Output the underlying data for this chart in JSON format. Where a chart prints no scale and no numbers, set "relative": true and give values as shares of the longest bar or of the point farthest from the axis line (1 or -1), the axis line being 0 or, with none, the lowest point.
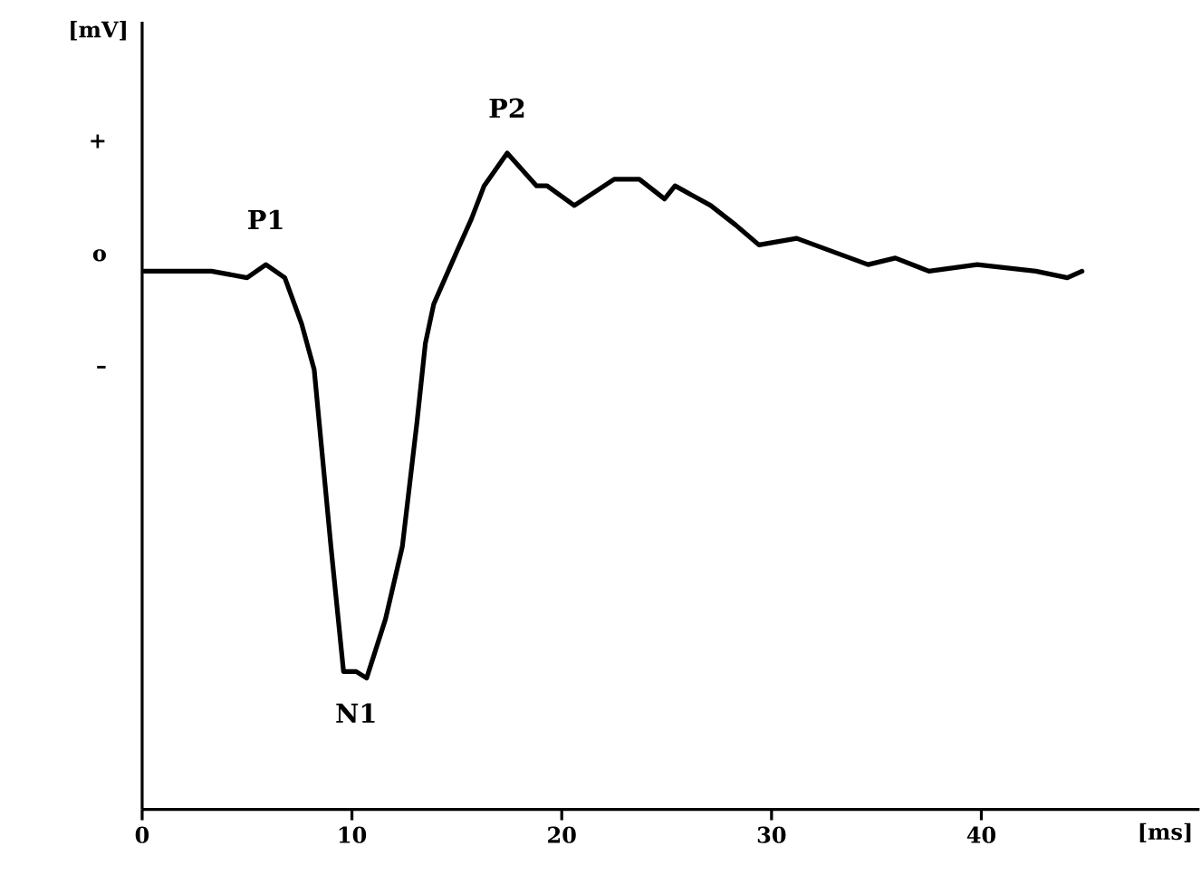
{
  "chart_data": {
    "type": "line",
    "relative": true,
    "xlabel": "[ms]",
    "ylabel": "[mV]",
    "xlim": [
      0,
      50.4
    ],
    "xticks": [
      0,
      10,
      20,
      30,
      40
    ],
    "ylim": [
      0,
      1.2
    ],
    "series": [
      {
        "color": "#000000",
        "x": [
          0.1,
          3.3,
          5.0,
          5.9,
          6.8,
          7.6,
          8.2,
          9.0,
          9.6,
          10.2,
          10.7,
          11.6,
          12.4,
          13.1,
          13.5,
          13.9,
          15.0,
          15.7,
          16.3,
          17.4,
          18.8,
          19.3,
          20.6,
          22.5,
          23.7,
          24.9,
          25.4,
          27.1,
          28.3,
          29.4,
          31.2,
          32.9,
          34.6,
          35.9,
          37.5,
          39.8,
          42.6,
          44.1,
          44.8
        ],
        "values": [
          0.82,
          0.82,
          0.81,
          0.83,
          0.81,
          0.74,
          0.67,
          0.4,
          0.21,
          0.21,
          0.2,
          0.29,
          0.4,
          0.59,
          0.71,
          0.77,
          0.85,
          0.9,
          0.95,
          1.0,
          0.95,
          0.95,
          0.92,
          0.96,
          0.96,
          0.93,
          0.95,
          0.92,
          0.89,
          0.86,
          0.87,
          0.85,
          0.83,
          0.84,
          0.82,
          0.83,
          0.82,
          0.81,
          0.82
        ]
      }
    ],
    "annotations": [
      {
        "text": "P1",
        "x": 5.9,
        "y": 0.83
      },
      {
        "text": "N1",
        "x": 10.2,
        "y": 0.21
      },
      {
        "text": "P2",
        "x": 17.4,
        "y": 1.0
      },
      "+",
      "o",
      "–"
    ]
  }
}
